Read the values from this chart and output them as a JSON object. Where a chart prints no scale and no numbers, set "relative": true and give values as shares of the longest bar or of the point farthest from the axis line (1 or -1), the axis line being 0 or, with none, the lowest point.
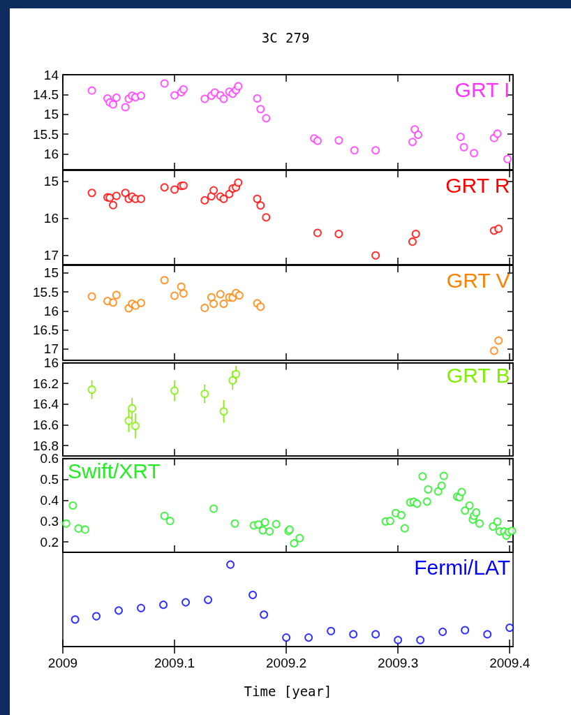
{
  "chart_data": [
    {
      "type": "scatter",
      "title": "3C 279",
      "marker": "circle",
      "legend": "top right",
      "tick_labels": "y",
      "xlim": [
        2009,
        2009.403
      ],
      "xticks": [
        2009,
        2009.1,
        2009.2,
        2009.3,
        2009.4
      ],
      "ylim": [
        16.4,
        14
      ],
      "yticks": [
        14,
        14.5,
        15,
        15.5,
        16
      ],
      "x": [
        2009.026,
        2009.04,
        2009.042,
        2009.045,
        2009.048,
        2009.056,
        2009.059,
        2009.062,
        2009.065,
        2009.07,
        2009.091,
        2009.1,
        2009.106,
        2009.108,
        2009.127,
        2009.133,
        2009.136,
        2009.141,
        2009.144,
        2009.149,
        2009.152,
        2009.155,
        2009.157,
        2009.174,
        2009.177,
        2009.182,
        2009.225,
        2009.228,
        2009.247,
        2009.261,
        2009.28,
        2009.313,
        2009.315,
        2009.318,
        2009.356,
        2009.359,
        2009.368,
        2009.386,
        2009.389,
        2009.398
      ],
      "series": [
        {
          "name": "GRT I",
          "color": "#ff33ff",
          "values": [
            14.4,
            14.6,
            14.7,
            14.75,
            14.58,
            14.82,
            14.61,
            14.53,
            14.57,
            14.53,
            14.22,
            14.52,
            14.44,
            14.37,
            14.61,
            14.53,
            14.45,
            14.52,
            14.61,
            14.43,
            14.48,
            14.39,
            14.29,
            14.6,
            14.87,
            15.1,
            15.61,
            15.67,
            15.66,
            15.91,
            15.91,
            15.7,
            15.38,
            15.52,
            15.57,
            15.83,
            15.98,
            15.6,
            15.49,
            16.13
          ]
        }
      ]
    },
    {
      "type": "scatter",
      "marker": "circle",
      "legend": "top right",
      "tick_labels": "y",
      "xlim": [
        2009,
        2009.403
      ],
      "xticks": [
        2009,
        2009.1,
        2009.2,
        2009.3,
        2009.4
      ],
      "ylim": [
        17.25,
        14.7
      ],
      "yticks": [
        15,
        16,
        17
      ],
      "x": [
        2009.026,
        2009.04,
        2009.042,
        2009.045,
        2009.048,
        2009.056,
        2009.059,
        2009.062,
        2009.065,
        2009.07,
        2009.091,
        2009.1,
        2009.106,
        2009.108,
        2009.127,
        2009.133,
        2009.135,
        2009.141,
        2009.144,
        2009.149,
        2009.152,
        2009.155,
        2009.157,
        2009.174,
        2009.177,
        2009.182,
        2009.228,
        2009.247,
        2009.28,
        2009.313,
        2009.316,
        2009.386,
        2009.39
      ],
      "series": [
        {
          "name": "GRT R",
          "color": "#ff0000",
          "values": [
            15.31,
            15.43,
            15.44,
            15.64,
            15.39,
            15.31,
            15.47,
            15.41,
            15.47,
            15.47,
            15.16,
            15.22,
            15.12,
            15.11,
            15.51,
            15.4,
            15.24,
            15.41,
            15.47,
            15.34,
            15.19,
            15.16,
            15.03,
            15.47,
            15.65,
            15.97,
            16.39,
            16.42,
            17.0,
            16.63,
            16.42,
            16.33,
            16.28
          ]
        }
      ]
    },
    {
      "type": "scatter",
      "marker": "circle",
      "legend": "top right",
      "tick_labels": "y",
      "xlim": [
        2009,
        2009.403
      ],
      "xticks": [
        2009,
        2009.1,
        2009.2,
        2009.3,
        2009.4
      ],
      "ylim": [
        17.3,
        14.8
      ],
      "yticks": [
        15,
        15.5,
        16,
        16.5,
        17
      ],
      "x": [
        2009.026,
        2009.04,
        2009.045,
        2009.048,
        2009.059,
        2009.062,
        2009.065,
        2009.07,
        2009.091,
        2009.1,
        2009.106,
        2009.108,
        2009.127,
        2009.133,
        2009.135,
        2009.141,
        2009.144,
        2009.149,
        2009.152,
        2009.155,
        2009.158,
        2009.174,
        2009.177,
        2009.386,
        2009.39
      ],
      "series": [
        {
          "name": "GRT V",
          "color": "#ff8000",
          "values": [
            15.62,
            15.74,
            15.78,
            15.58,
            15.93,
            15.81,
            15.86,
            15.79,
            15.19,
            15.6,
            15.36,
            15.54,
            15.92,
            15.64,
            15.81,
            15.56,
            15.81,
            15.64,
            15.65,
            15.53,
            15.59,
            15.8,
            15.89,
            17.05,
            16.78
          ]
        }
      ]
    },
    {
      "type": "scatter",
      "marker": "circle",
      "legend": "top right",
      "tick_labels": "y",
      "xlim": [
        2009,
        2009.403
      ],
      "xticks": [
        2009,
        2009.1,
        2009.2,
        2009.3,
        2009.4
      ],
      "ylim": [
        16.9,
        16
      ],
      "yticks": [
        16,
        16.2,
        16.4,
        16.6,
        16.8
      ],
      "x": [
        2009.026,
        2009.059,
        2009.062,
        2009.065,
        2009.1,
        2009.127,
        2009.144,
        2009.152,
        2009.155
      ],
      "series": [
        {
          "name": "GRT B",
          "color": "#80ee00",
          "values": [
            16.26,
            16.56,
            16.44,
            16.61,
            16.27,
            16.3,
            16.47,
            16.17,
            16.11
          ],
          "errors": [
            0.09,
            0.11,
            0.1,
            0.12,
            0.1,
            0.09,
            0.11,
            0.09,
            0.08
          ]
        }
      ]
    },
    {
      "type": "scatter",
      "marker": "circle",
      "legend": "top left",
      "tick_labels": "y",
      "xlim": [
        2009,
        2009.403
      ],
      "xticks": [
        2009,
        2009.1,
        2009.2,
        2009.3,
        2009.4
      ],
      "ylim": [
        0.15,
        0.6
      ],
      "yticks": [
        0.2,
        0.3,
        0.4,
        0.5,
        0.6
      ],
      "x": [
        2009.003,
        2009.009,
        2009.014,
        2009.02,
        2009.091,
        2009.096,
        2009.135,
        2009.154,
        2009.171,
        2009.175,
        2009.179,
        2009.181,
        2009.185,
        2009.191,
        2009.202,
        2009.203,
        2009.207,
        2009.212,
        2009.289,
        2009.293,
        2009.298,
        2009.303,
        2009.306,
        2009.311,
        2009.314,
        2009.317,
        2009.322,
        2009.327,
        2009.326,
        2009.336,
        2009.339,
        2009.341,
        2009.353,
        2009.355,
        2009.357,
        2009.36,
        2009.364,
        2009.367,
        2009.368,
        2009.37,
        2009.373,
        2009.385,
        2009.389,
        2009.391,
        2009.395,
        2009.397,
        2009.399,
        2009.402
      ],
      "series": [
        {
          "name": "Swift/XRT",
          "color": "#22ee22",
          "values": [
            0.288,
            0.374,
            0.264,
            0.259,
            0.325,
            0.3,
            0.359,
            0.288,
            0.279,
            0.283,
            0.255,
            0.294,
            0.25,
            0.285,
            0.252,
            0.259,
            0.193,
            0.218,
            0.298,
            0.3,
            0.338,
            0.328,
            0.265,
            0.389,
            0.392,
            0.383,
            0.514,
            0.451,
            0.393,
            0.442,
            0.469,
            0.516,
            0.417,
            0.414,
            0.439,
            0.35,
            0.374,
            0.307,
            0.325,
            0.341,
            0.288,
            0.274,
            0.297,
            0.25,
            0.25,
            0.23,
            0.247,
            0.253
          ]
        }
      ]
    },
    {
      "type": "scatter",
      "marker": "circle",
      "legend": "top right",
      "relative": true,
      "xlabel": "Time [year]",
      "xlim": [
        2009,
        2009.403
      ],
      "xticks": [
        2009,
        2009.1,
        2009.2,
        2009.3,
        2009.4
      ],
      "x": [
        2009.011,
        2009.03,
        2009.05,
        2009.07,
        2009.09,
        2009.11,
        2009.13,
        2009.15,
        2009.17,
        2009.18,
        2009.2,
        2009.22,
        2009.24,
        2009.26,
        2009.28,
        2009.3,
        2009.32,
        2009.34,
        2009.36,
        2009.38,
        2009.4
      ],
      "series": [
        {
          "name": "Fermi/LAT",
          "color": "#0000ff",
          "values": [
            0.33,
            0.37,
            0.44,
            0.47,
            0.51,
            0.54,
            0.57,
            1,
            0.63,
            0.39,
            0.11,
            0.11,
            0.19,
            0.15,
            0.15,
            0.08,
            0.08,
            0.18,
            0.2,
            0.15,
            0.23
          ]
        }
      ]
    }
  ]
}
